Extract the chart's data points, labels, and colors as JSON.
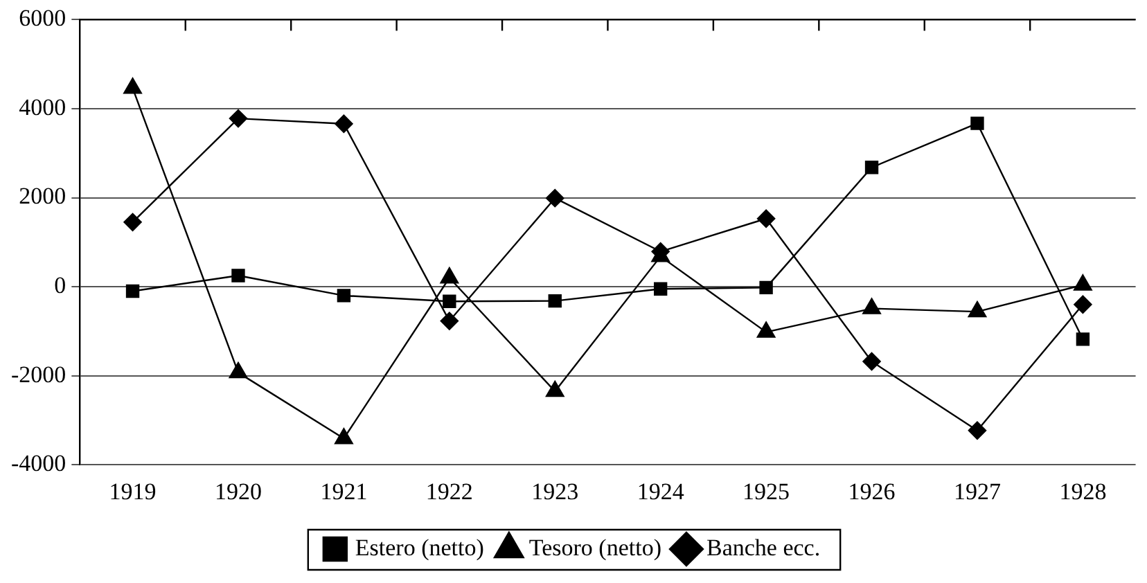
{
  "chart_data": {
    "type": "line",
    "categories": [
      "1919",
      "1920",
      "1921",
      "1922",
      "1923",
      "1924",
      "1925",
      "1926",
      "1927",
      "1928"
    ],
    "series": [
      {
        "name": "Estero (netto)",
        "color": "#000000",
        "marker": "square",
        "values": [
          -100,
          250,
          -200,
          -330,
          -320,
          -50,
          -20,
          2680,
          3670,
          -1180
        ]
      },
      {
        "name": "Tesoro (netto)",
        "color": "#000000",
        "marker": "triangle",
        "values": [
          4460,
          -1930,
          -3410,
          200,
          -2350,
          680,
          -1020,
          -490,
          -560,
          40
        ]
      },
      {
        "name": "Banche ecc.",
        "color": "#000000",
        "marker": "diamond",
        "values": [
          1450,
          3780,
          3660,
          -770,
          1990,
          790,
          1530,
          -1680,
          -3230,
          -400
        ]
      }
    ],
    "ylim": [
      -4000,
      6000
    ],
    "yticks": [
      -4000,
      -2000,
      0,
      2000,
      4000,
      6000
    ],
    "grid": "y",
    "legend": "bottom",
    "line_style": "solid"
  }
}
